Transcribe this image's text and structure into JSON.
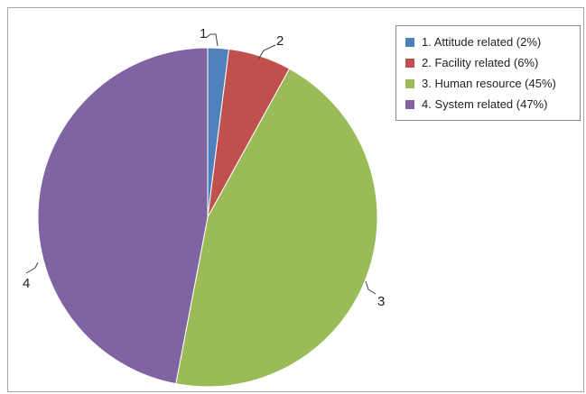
{
  "chart_data": {
    "type": "pie",
    "categories": [
      "1",
      "2",
      "3",
      "4"
    ],
    "values": [
      2,
      6,
      45,
      47
    ],
    "colors": [
      "#4f81bd",
      "#c0504d",
      "#9bbb59",
      "#8064a2"
    ],
    "legend": {
      "placement": "top-right",
      "entries": [
        "1. Attitude related (2%)",
        "2. Facility related (6%)",
        "3. Human resource (45%)",
        "4. System related (47%)"
      ]
    },
    "start_angle": "12 o'clock",
    "direction": "clockwise"
  }
}
